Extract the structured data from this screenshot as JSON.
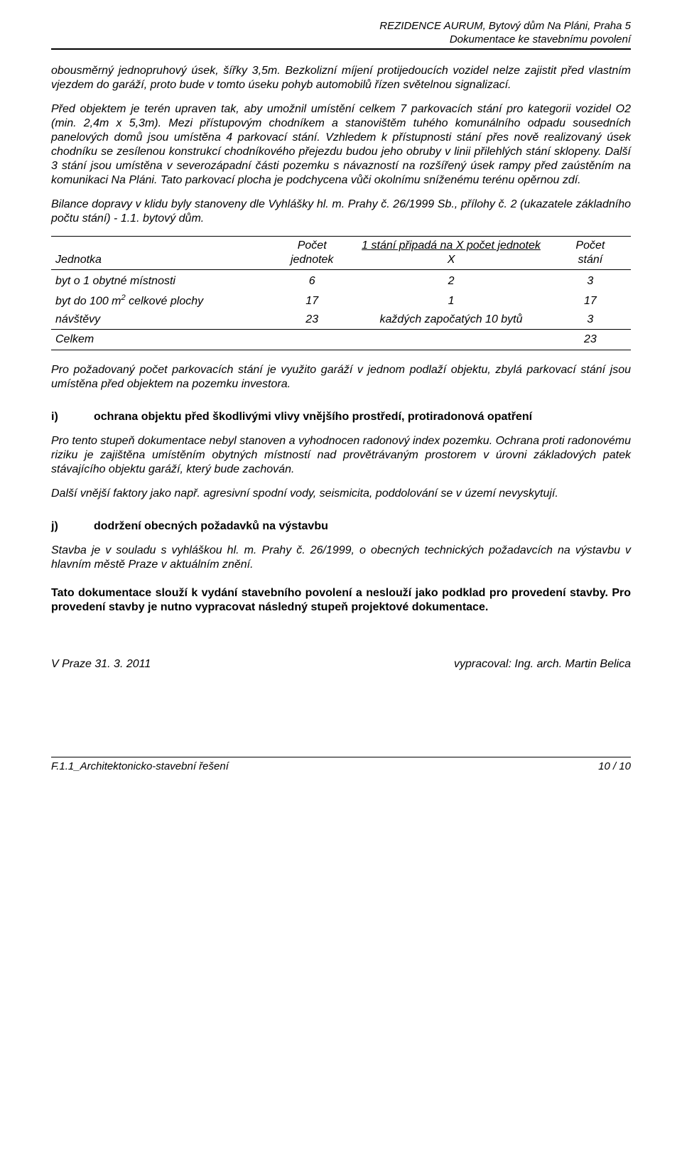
{
  "header": {
    "line1": "REZIDENCE AURUM, Bytový dům Na Pláni, Praha 5",
    "line2": "Dokumentace ke stavebnímu povolení"
  },
  "paragraphs": {
    "p1": "obousměrný jednopruhový úsek, šířky 3,5m. Bezkolizní míjení protijedoucích vozidel nelze zajistit před vlastním vjezdem do garáží, proto bude v tomto úseku pohyb automobilů řízen světelnou signalizací.",
    "p2": "Před objektem je terén upraven tak, aby umožnil umístění celkem 7 parkovacích stání pro kategorii vozidel O2 (min. 2,4m x 5,3m). Mezi přístupovým chodníkem a stanovištěm tuhého komunálního odpadu sousedních panelových domů jsou umístěna 4 parkovací stání. Vzhledem k přístupnosti stání přes nově realizovaný úsek chodníku se zesílenou konstrukcí chodníkového přejezdu budou jeho obruby v linii přilehlých stání sklopeny. Další 3 stání jsou umístěna v severozápadní části pozemku s návazností na rozšířený úsek rampy před zaústěním na komunikaci Na Pláni. Tato parkovací plocha je podchycena vůči okolnímu sníženému terénu opěrnou zdí.",
    "p3": "Bilance dopravy v klidu byly stanoveny dle Vyhlášky hl. m. Prahy č. 26/1999 Sb., přílohy č. 2 (ukazatele základního počtu stání) - 1.1. bytový dům.",
    "p4": "Pro požadovaný počet parkovacích stání je využito garáží v jednom podlaží objektu, zbylá parkovací stání jsou umístěna před objektem na pozemku investora.",
    "p5": "Pro tento stupeň dokumentace nebyl stanoven a vyhodnocen radonový index pozemku. Ochrana proti radonovému riziku je zajištěna umístěním obytných místností nad provětrávaným prostorem v úrovni základových patek stávajícího objektu garáží, který bude zachován.",
    "p6": "Další vnější faktory jako např. agresivní spodní vody, seismicita, poddolování se v území nevyskytují.",
    "p7": "Stavba je v souladu s vyhláškou hl. m. Prahy č. 26/1999, o obecných technických požadavcích na výstavbu v hlavním městě Praze v aktuálním znění.",
    "boldBlock": "Tato dokumentace slouží k vydání stavebního povolení a neslouží jako podklad pro provedení stavby. Pro provedení stavby je nutno vypracovat následný stupeň projektové dokumentace."
  },
  "table": {
    "columns": {
      "c1": "Jednotka",
      "c2a": "Počet",
      "c2b": "jednotek",
      "c3a": "1 stání připadá na X počet jednotek",
      "c3b": "X",
      "c4a": "Počet",
      "c4b": "stání"
    },
    "rows": [
      {
        "label_html": "byt  o 1 obytné místnosti",
        "units": "6",
        "ratio": "2",
        "count": "3"
      },
      {
        "label_html": "byt do 100 m<sup>2</sup> celkové plochy",
        "units": "17",
        "ratio": "1",
        "count": "17"
      },
      {
        "label_html": "návštěvy",
        "units": "23",
        "ratio": "každých započatých 10 bytů",
        "count": "3"
      }
    ],
    "sum": {
      "label": "Celkem",
      "count": "23"
    }
  },
  "sections": {
    "i": {
      "letter": "i)",
      "title": "ochrana objektu před škodlivými vlivy vnějšího prostředí, protiradonová opatření"
    },
    "j": {
      "letter": "j)",
      "title": "dodržení obecných požadavků na výstavbu"
    }
  },
  "signoff": {
    "left": "V Praze 31. 3. 2011",
    "right": "vypracoval: Ing. arch. Martin Belica"
  },
  "footer": {
    "left": "F.1.1_Architektonicko-stavební řešení",
    "right": "10 / 10"
  }
}
